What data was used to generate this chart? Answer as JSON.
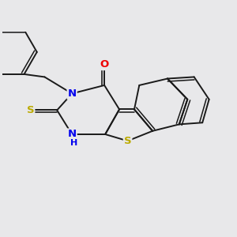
{
  "background_color": "#e8e8ea",
  "bond_color": "#1a1a1a",
  "bond_width": 1.4,
  "atom_colors": {
    "N": "#0000ee",
    "S": "#bbaa00",
    "O": "#ee0000",
    "C": "#1a1a1a"
  },
  "font_size_atom": 8.5,
  "fig_width": 3.0,
  "fig_height": 3.0,
  "dpi": 100,
  "xlim": [
    -4.5,
    5.5
  ],
  "ylim": [
    -3.5,
    4.0
  ]
}
